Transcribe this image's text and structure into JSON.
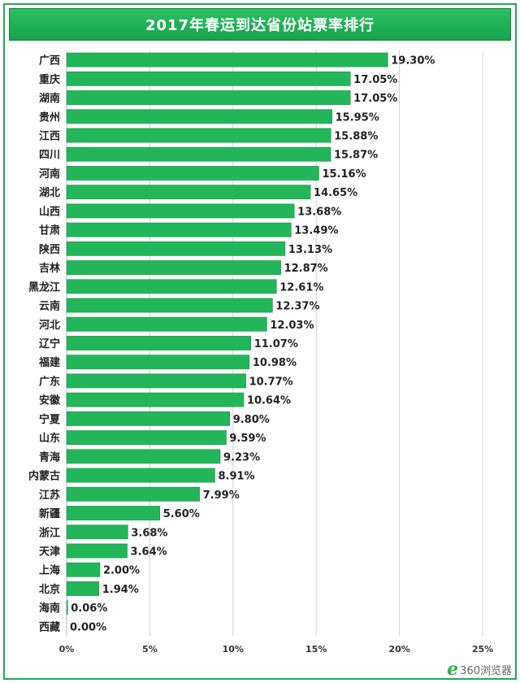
{
  "chart_data": {
    "type": "bar",
    "orientation": "horizontal",
    "title": "2017年春运到达省份站票率排行",
    "categories": [
      "广西",
      "重庆",
      "湖南",
      "贵州",
      "江西",
      "四川",
      "河南",
      "湖北",
      "山西",
      "甘肃",
      "陕西",
      "吉林",
      "黑龙江",
      "云南",
      "河北",
      "辽宁",
      "福建",
      "广东",
      "安徽",
      "宁夏",
      "山东",
      "青海",
      "内蒙古",
      "江苏",
      "新疆",
      "浙江",
      "天津",
      "上海",
      "北京",
      "海南",
      "西藏"
    ],
    "values": [
      19.3,
      17.05,
      17.05,
      15.95,
      15.88,
      15.87,
      15.16,
      14.65,
      13.68,
      13.49,
      13.13,
      12.87,
      12.61,
      12.37,
      12.03,
      11.07,
      10.98,
      10.77,
      10.64,
      9.8,
      9.59,
      9.23,
      8.91,
      7.99,
      5.6,
      3.68,
      3.64,
      2.0,
      1.94,
      0.06,
      0.0
    ],
    "value_labels": [
      "19.30%",
      "17.05%",
      "17.05%",
      "15.95%",
      "15.88%",
      "15.87%",
      "15.16%",
      "14.65%",
      "13.68%",
      "13.49%",
      "13.13%",
      "12.87%",
      "12.61%",
      "12.37%",
      "12.03%",
      "11.07%",
      "10.98%",
      "10.77%",
      "10.64%",
      "9.80%",
      "9.59%",
      "9.23%",
      "8.91%",
      "7.99%",
      "5.60%",
      "3.68%",
      "3.64%",
      "2.00%",
      "1.94%",
      "0.06%",
      "0.00%"
    ],
    "xlim": [
      0,
      25
    ],
    "xticks": [
      "0%",
      "5%",
      "10%",
      "15%",
      "20%",
      "25%"
    ],
    "xtick_values": [
      0,
      5,
      10,
      15,
      20,
      25
    ],
    "grid": true,
    "bar_color": "#22b659",
    "bar_border_color": "#169a45"
  },
  "watermark": {
    "glyph": "e",
    "text": "360浏览器"
  }
}
